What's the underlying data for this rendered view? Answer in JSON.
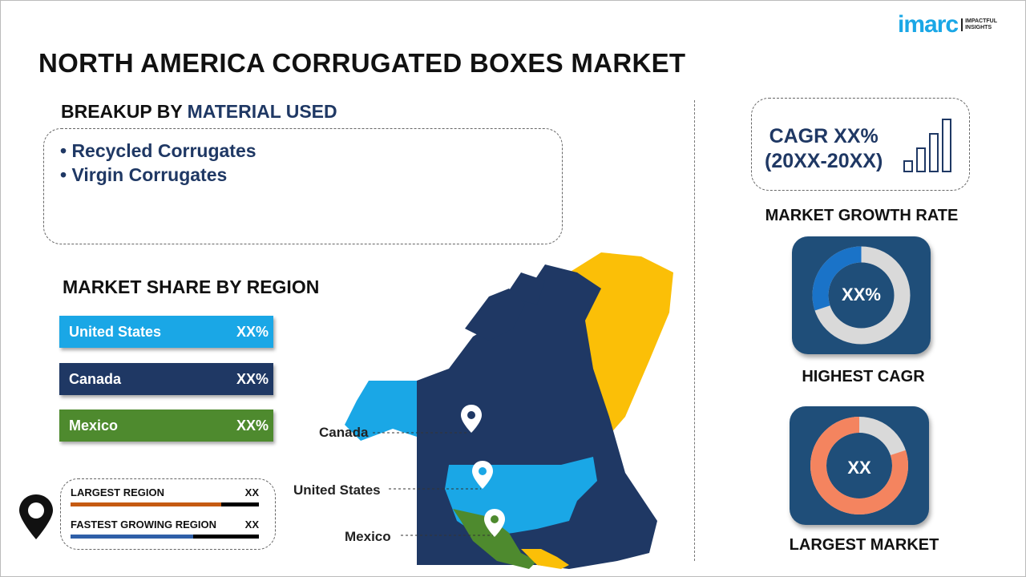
{
  "title": "NORTH AMERICA CORRUGATED BOXES MARKET",
  "logo": {
    "brand": "imarc",
    "tagline_1": "IMPACTFUL",
    "tagline_2": "INSIGHTS"
  },
  "breakup": {
    "heading_prefix": "BREAKUP BY ",
    "heading_accent": "MATERIAL USED",
    "items": [
      "• Recycled Corrugates",
      "• Virgin Corrugates"
    ]
  },
  "region": {
    "heading": "MARKET SHARE BY REGION",
    "bars": [
      {
        "label": "United States",
        "value": "XX%",
        "color": "#1aa7e6"
      },
      {
        "label": "Canada",
        "value": "XX%",
        "color": "#1f3864"
      },
      {
        "label": "Mexico",
        "value": "XX%",
        "color": "#4e8a2e"
      }
    ]
  },
  "legend": {
    "rows": [
      {
        "label": "LARGEST REGION",
        "value": "XX",
        "color": "#c55a11",
        "fill": 0.8
      },
      {
        "label": "FASTEST GROWING REGION",
        "value": "XX",
        "color": "#2f5fa8",
        "fill": 0.65
      }
    ]
  },
  "map": {
    "labels": [
      "Canada",
      "United States",
      "Mexico"
    ],
    "colors": {
      "canada": "#1f3864",
      "us": "#1aa7e6",
      "greenland": "#fbbf07",
      "mexico": "#4e8a2e",
      "central": "#fbbf07"
    }
  },
  "growth": {
    "cagr_line1": "CAGR XX%",
    "cagr_line2": "(20XX-20XX)",
    "label": "MARKET GROWTH RATE"
  },
  "highest_cagr": {
    "value": "XX%",
    "label": "HIGHEST CAGR",
    "fraction": 0.3,
    "color": "#1a73c8"
  },
  "largest_market": {
    "value": "XX",
    "label": "LARGEST MARKET",
    "fraction": 0.8,
    "color": "#f4845f"
  }
}
